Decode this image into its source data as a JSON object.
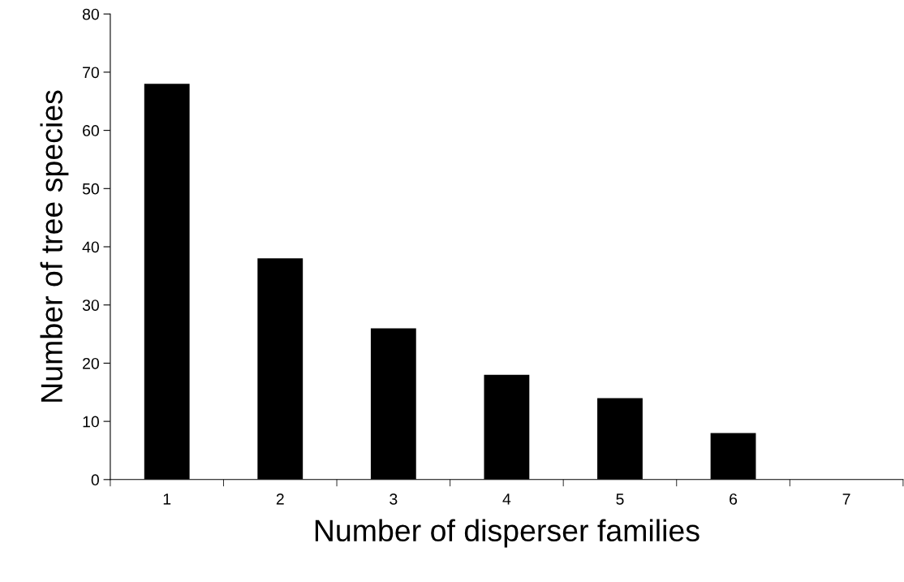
{
  "chart_data": {
    "type": "bar",
    "xlabel": "Number of disperser families",
    "ylabel": "Number of tree species",
    "categories": [
      "1",
      "2",
      "3",
      "4",
      "5",
      "6",
      "7"
    ],
    "values": [
      68,
      38,
      26,
      18,
      14,
      8,
      0
    ],
    "color": "#000000",
    "ylim": [
      0,
      80
    ],
    "yticks": [
      0,
      10,
      20,
      30,
      40,
      50,
      60,
      70,
      80
    ],
    "grid": false,
    "legend": false
  }
}
